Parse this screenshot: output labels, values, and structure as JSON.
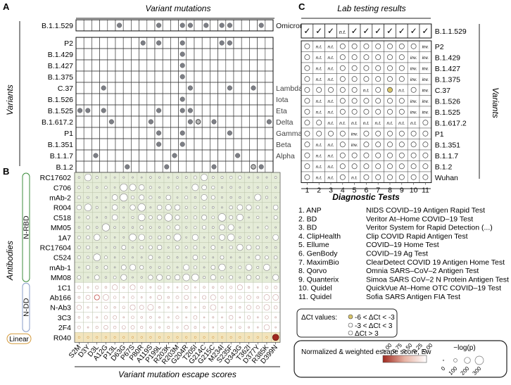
{
  "panel_labels": {
    "a": "A",
    "b": "B",
    "c": "C"
  },
  "panel_a": {
    "title": "Variant mutations",
    "y_axis_label": "Variants",
    "variants": [
      "B.1.1.529",
      "P2",
      "B.1.429",
      "B.1.427",
      "B.1.375",
      "C.37",
      "B.1.526",
      "B.1.525",
      "B.1.617.2",
      "P1",
      "B.1.351",
      "B.1.1.7",
      "B.1.2"
    ],
    "who_names": [
      "Omicron",
      "",
      "",
      "",
      "",
      "Lambda",
      "Iota",
      "Eta",
      "Delta",
      "Gamma",
      "Beta",
      "Alpha",
      ""
    ],
    "mutation_dots": [
      [
        5,
        10,
        13,
        14,
        16,
        18,
        19,
        23
      ],
      [
        8,
        10,
        13,
        18,
        19
      ],
      [
        13
      ],
      [
        13
      ],
      [
        13
      ],
      [
        3,
        14,
        19,
        22
      ],
      [
        13
      ],
      [
        0,
        1,
        3,
        10,
        13,
        14
      ],
      [
        4,
        9,
        14,
        15,
        17,
        24
      ],
      [
        10,
        13,
        19
      ],
      [
        10,
        13
      ],
      [
        2,
        12,
        20
      ],
      [
        6,
        11,
        17,
        23
      ]
    ],
    "open_dots": [
      [
        8,
        15
      ],
      [
        12,
        22
      ]
    ]
  },
  "panel_b": {
    "y_axis_label": "Antibodies",
    "x_axis_title": "Variant mutation escape scores",
    "antibodies": [
      "RC17602",
      "C706",
      "mAb-2",
      "R004",
      "C518",
      "MM05",
      "1A7",
      "RC17604",
      "C524",
      "mAb-1",
      "MM08",
      "1C1",
      "Ab166",
      "N-Ab3",
      "3C3",
      "2F4",
      "R040"
    ],
    "groups": [
      "N-RBD",
      "N-DD",
      "Linear"
    ],
    "mutations": [
      "S2M",
      "D3Y",
      "D3L",
      "A12G",
      "P13L",
      "D63G",
      "P67S",
      "P80R",
      "A119S",
      "P199L",
      "R203K",
      "R203M",
      "G204R",
      "T205I",
      "G214C",
      "G215C",
      "M234I",
      "S235F",
      "D343G",
      "T362I",
      "D377Y",
      "R385K",
      "D399N"
    ]
  },
  "panel_c": {
    "title": "Lab testing results",
    "y_axis_label": "Variants",
    "variants": [
      "B.1.1.529",
      "P2",
      "B.1.429",
      "B.1.427",
      "B.1.375",
      "C.37",
      "B.1.526",
      "B.1.525",
      "B.1.617.2",
      "P1",
      "B.1.351",
      "B.1.1.7",
      "B.1.2",
      "Wuhan"
    ],
    "test_numbers": [
      "1",
      "2",
      "3",
      "4",
      "5",
      "6",
      "7",
      "8",
      "9",
      "10",
      "11"
    ],
    "check_symbol": "✓",
    "omicron_row": [
      "✓",
      "✓",
      "✓",
      "n.t.",
      "✓",
      "✓",
      "✓",
      "✓",
      "✓",
      "✓",
      "✓"
    ],
    "nt": "n.t.",
    "inv": "inv.",
    "x_title": "Diagnostic Tests"
  },
  "diagnostic_tests": [
    {
      "n": "1. ANP",
      "name": "NIDS COVID–19 Antigen Rapid Test"
    },
    {
      "n": "2. BD",
      "name": "Veritor At–Home COVID–19 Test"
    },
    {
      "n": "3. BD",
      "name": "Veritor System for Rapid Detection (...)"
    },
    {
      "n": "4. ClipHealth",
      "name": "Clip COVID Rapid Antigen Test"
    },
    {
      "n": "5. Ellume",
      "name": "COVID–19 Home Test"
    },
    {
      "n": "6. GenBody",
      "name": "COVID–19 Ag Test"
    },
    {
      "n": "7. MaximBio",
      "name": "ClearDetect COVID 19 Antigen Home Test"
    },
    {
      "n": "8. Qorvo",
      "name": "Omnia SARS–CoV–2 Antigen Test"
    },
    {
      "n": "9. Quanterix",
      "name": "Simoa SARS CoV–2 N Protein Antigen Test"
    },
    {
      "n": "10. Quidel",
      "name": "QuickVue At–Home OTC COVID–19 Test"
    },
    {
      "n": "11. Quidel",
      "name": "Sofia SARS Antigen FIA Test"
    }
  ],
  "legend_ct": {
    "title": "ΔCt values:",
    "items": [
      "-6 < ΔCt < -3",
      "-3 < ΔCt < 3",
      "ΔCt > 3"
    ]
  },
  "legend_escape": {
    "title": "Normalized & weighted escape score, Ew",
    "ticks": [
      "1.00",
      "0.75",
      "0.50",
      "0.25",
      "0.00"
    ],
    "p_title": "−log(p)",
    "p_ticks": [
      "0",
      "100",
      "200",
      "300"
    ]
  },
  "colors": {
    "dot": "#7d7f86",
    "tan": "#d8c46a",
    "green": "#e5ecd8",
    "linear": "#f2e4bc",
    "group_border": "#3c8c3c",
    "red": "#a0281e",
    "orange": "#d49a3a",
    "blue": "#8a9ec8"
  }
}
